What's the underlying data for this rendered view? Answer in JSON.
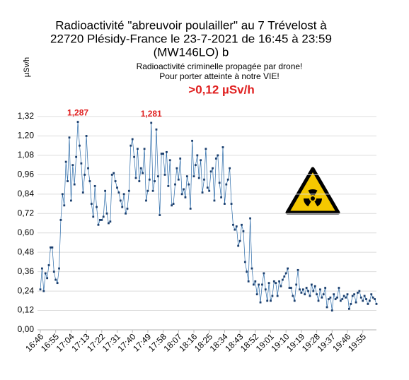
{
  "chart_data": {
    "type": "line",
    "title": [
      "Radioactivité \"abreuvoir poulailler\" au 7 Trévelost à",
      "22720 Plésidy-France le 23-7-2021 de 16:45 à 23:59",
      "(MW146LO) b"
    ],
    "subtitle": [
      "Radioactivité criminelle propagée par drone!",
      "Pour porter atteinte à notre VIE!"
    ],
    "annotation": ">0,12 µSv/h",
    "y_label": "µSv/h",
    "categories": [
      "16:46",
      null,
      null,
      null,
      null,
      null,
      null,
      null,
      null,
      "16:55",
      null,
      null,
      null,
      null,
      null,
      null,
      null,
      null,
      "17:04",
      null,
      null,
      null,
      null,
      null,
      null,
      null,
      null,
      "17:13",
      null,
      null,
      null,
      null,
      null,
      null,
      null,
      null,
      "17:22",
      null,
      null,
      null,
      null,
      null,
      null,
      null,
      null,
      "17:31",
      null,
      null,
      null,
      null,
      null,
      null,
      null,
      null,
      "17:40",
      null,
      null,
      null,
      null,
      null,
      null,
      null,
      null,
      "17:49",
      null,
      null,
      null,
      null,
      null,
      null,
      null,
      null,
      "17:58",
      null,
      null,
      null,
      null,
      null,
      null,
      null,
      null,
      "18:07",
      null,
      null,
      null,
      null,
      null,
      null,
      null,
      null,
      "18:16",
      null,
      null,
      null,
      null,
      null,
      null,
      null,
      null,
      "18:25",
      null,
      null,
      null,
      null,
      null,
      null,
      null,
      null,
      "18:34",
      null,
      null,
      null,
      null,
      null,
      null,
      null,
      null,
      "18:43",
      null,
      null,
      null,
      null,
      null,
      null,
      null,
      null,
      "18:52",
      null,
      null,
      null,
      null,
      null,
      null,
      null,
      null,
      "19:01",
      null,
      null,
      null,
      null,
      null,
      null,
      null,
      null,
      "19:10",
      null,
      null,
      null,
      null,
      null,
      null,
      null,
      null,
      "19:19",
      null,
      null,
      null,
      null,
      null,
      null,
      null,
      null,
      "19:28",
      null,
      null,
      null,
      null,
      null,
      null,
      null,
      null,
      "19:37",
      null,
      null,
      null,
      null,
      null,
      null,
      null,
      null,
      "19:46",
      null,
      null,
      null,
      null,
      null,
      null,
      null,
      null,
      "19:55",
      null,
      null,
      null,
      null,
      null,
      null,
      null,
      null
    ],
    "values": [
      0.25,
      0.38,
      0.24,
      0.35,
      0.32,
      0.4,
      0.51,
      0.51,
      0.36,
      0.31,
      0.29,
      0.38,
      0.68,
      0.84,
      0.77,
      1.04,
      0.92,
      1.19,
      0.8,
      1.02,
      0.9,
      1.07,
      1.287,
      1.14,
      1.03,
      0.85,
      0.96,
      1.2,
      1.0,
      0.92,
      0.78,
      0.7,
      0.89,
      0.76,
      0.65,
      0.68,
      0.68,
      0.7,
      0.86,
      0.72,
      0.66,
      0.67,
      0.96,
      0.97,
      0.92,
      0.88,
      0.85,
      0.8,
      0.76,
      0.84,
      0.72,
      0.75,
      0.86,
      1.14,
      1.18,
      1.07,
      0.94,
      1.12,
      0.92,
      1.0,
      0.97,
      1.12,
      0.8,
      0.86,
      0.93,
      1.281,
      0.86,
      0.92,
      1.24,
      0.95,
      0.71,
      1.09,
      1.09,
      0.96,
      1.1,
      0.89,
      1.05,
      0.77,
      0.78,
      0.9,
      1.0,
      0.93,
      1.06,
      0.84,
      0.87,
      0.82,
      0.95,
      0.9,
      0.75,
      1.17,
      0.95,
      1.02,
      1.08,
      0.94,
      1.05,
      0.85,
      0.93,
      1.12,
      0.88,
      0.86,
      0.98,
      1.0,
      0.8,
      1.06,
      1.08,
      0.91,
      0.82,
      1.13,
      0.78,
      0.9,
      0.93,
      1.0,
      0.78,
      0.65,
      0.62,
      0.64,
      0.52,
      0.55,
      0.65,
      0.61,
      0.42,
      0.36,
      0.3,
      0.69,
      0.38,
      0.28,
      0.3,
      0.22,
      0.28,
      0.17,
      0.28,
      0.35,
      0.25,
      0.18,
      0.29,
      0.18,
      0.21,
      0.3,
      0.29,
      0.21,
      0.3,
      0.27,
      0.31,
      0.33,
      0.35,
      0.38,
      0.26,
      0.26,
      0.21,
      0.18,
      0.28,
      0.37,
      0.25,
      0.23,
      0.25,
      0.22,
      0.26,
      0.24,
      0.21,
      0.28,
      0.24,
      0.27,
      0.22,
      0.18,
      0.25,
      0.2,
      0.22,
      0.26,
      0.14,
      0.19,
      0.2,
      0.12,
      0.22,
      0.19,
      0.2,
      0.26,
      0.18,
      0.19,
      0.21,
      0.2,
      0.22,
      0.13,
      0.16,
      0.21,
      0.22,
      0.17,
      0.23,
      0.24,
      0.2,
      0.18,
      0.21,
      0.19,
      0.16,
      0.18,
      0.22,
      0.2,
      0.19,
      0.16
    ],
    "value_labels": [
      null,
      null,
      null,
      null,
      null,
      null,
      null,
      null,
      null,
      null,
      null,
      null,
      null,
      null,
      null,
      null,
      null,
      null,
      null,
      null,
      null,
      null,
      "1,287",
      null,
      null,
      null,
      null,
      null,
      null,
      null,
      null,
      null,
      null,
      null,
      null,
      null,
      null,
      null,
      null,
      null,
      null,
      null,
      null,
      null,
      null,
      null,
      null,
      null,
      null,
      null,
      null,
      null,
      null,
      null,
      null,
      null,
      null,
      null,
      null,
      null,
      null,
      null,
      null,
      null,
      null,
      "1,281",
      null,
      null,
      null,
      null,
      null,
      null,
      null,
      null,
      null,
      null,
      null,
      null,
      null,
      null,
      null,
      null,
      null,
      null,
      null,
      null,
      null,
      null,
      null,
      null,
      null,
      null,
      null,
      null,
      null,
      null,
      null,
      null,
      null,
      null,
      null,
      null,
      null,
      null,
      null,
      null,
      null,
      null,
      null,
      null,
      null,
      null,
      null,
      null,
      null,
      null,
      null,
      null,
      null,
      null,
      null,
      null,
      null,
      null,
      null,
      null,
      null,
      null,
      null,
      null,
      null,
      null,
      null,
      null,
      null,
      null,
      null,
      null,
      null,
      null,
      null,
      null,
      null,
      null,
      null,
      null,
      null,
      null,
      null,
      null,
      null,
      null,
      null,
      null,
      null,
      null,
      null,
      null,
      null,
      null,
      null,
      null,
      null,
      null,
      null,
      null,
      null,
      null,
      null,
      null,
      null,
      null,
      null,
      null,
      null,
      null,
      null,
      null,
      null,
      null,
      null,
      null,
      null,
      null,
      null,
      null,
      null,
      null,
      null,
      null,
      null,
      null,
      null,
      null,
      null,
      null,
      null,
      null
    ],
    "color": "#2a6aa8",
    "marker_color": "#1b3f6e",
    "label_color": "#e02020",
    "ylim": [
      0,
      1.32
    ],
    "yticks": [
      {
        "value": 0,
        "label": "0,00"
      },
      {
        "value": 0.12,
        "label": "0,12"
      },
      {
        "value": 0.24,
        "label": "0,24"
      },
      {
        "value": 0.36,
        "label": "0,36"
      },
      {
        "value": 0.48,
        "label": "0,48"
      },
      {
        "value": 0.6,
        "label": "0,60"
      },
      {
        "value": 0.72,
        "label": "0,72"
      },
      {
        "value": 0.84,
        "label": "0,84"
      },
      {
        "value": 0.96,
        "label": "0,96"
      },
      {
        "value": 1.08,
        "label": "1,08"
      },
      {
        "value": 1.2,
        "label": "1,20"
      },
      {
        "value": 1.32,
        "label": "1,32"
      }
    ],
    "grid": true
  }
}
